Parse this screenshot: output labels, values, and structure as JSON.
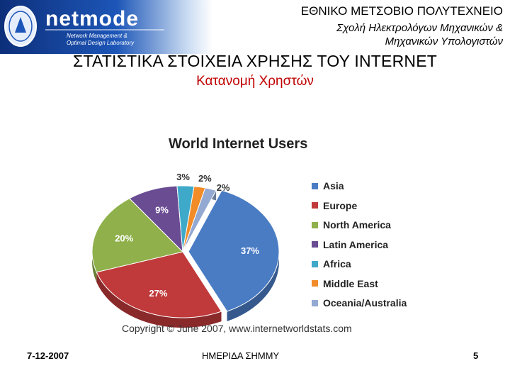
{
  "header": {
    "logo_text": "netmode",
    "logo_subtitle_1": "Network Management &",
    "logo_subtitle_2": "Optimal Design Laboratory",
    "institution": "ΕΘΝΙΚΟ ΜΕΤΣΟΒΙΟ ΠΟΛΥΤΕΧΝΕΙΟ",
    "school_line1": "Σχολή Ηλεκτρολόγων Μηχανικών &",
    "school_line2": "Μηχανικών Υπολογιστών"
  },
  "slide": {
    "title": "ΣΤΑΤΙΣΤΙΚΑ ΣΤΟΙΧΕΙΑ ΧΡΗΣΗΣ ΤΟΥ INTERNET",
    "subtitle": "Κατανομή Χρηστών"
  },
  "chart_data": {
    "type": "pie",
    "title": "World Internet Users",
    "categories": [
      "Asia",
      "Europe",
      "North America",
      "Latin America",
      "Africa",
      "Middle East",
      "Oceania/Australia"
    ],
    "values": [
      37,
      27,
      20,
      9,
      3,
      2,
      2
    ],
    "colors": [
      "#4a7cc4",
      "#c0393b",
      "#8fb04a",
      "#6a4c93",
      "#3fa9c9",
      "#f28c28",
      "#93a9d2"
    ],
    "legend_position": "right",
    "data_labels": [
      "37%",
      "27%",
      "20%",
      "9%",
      "3%",
      "2%",
      "2%"
    ],
    "copyright": "Copyright © June 2007, www.internetworldstats.com"
  },
  "footer": {
    "date": "7-12-2007",
    "event": "ΗΜΕΡΙΔΑ ΣΗΜΜΥ",
    "page": "5"
  }
}
